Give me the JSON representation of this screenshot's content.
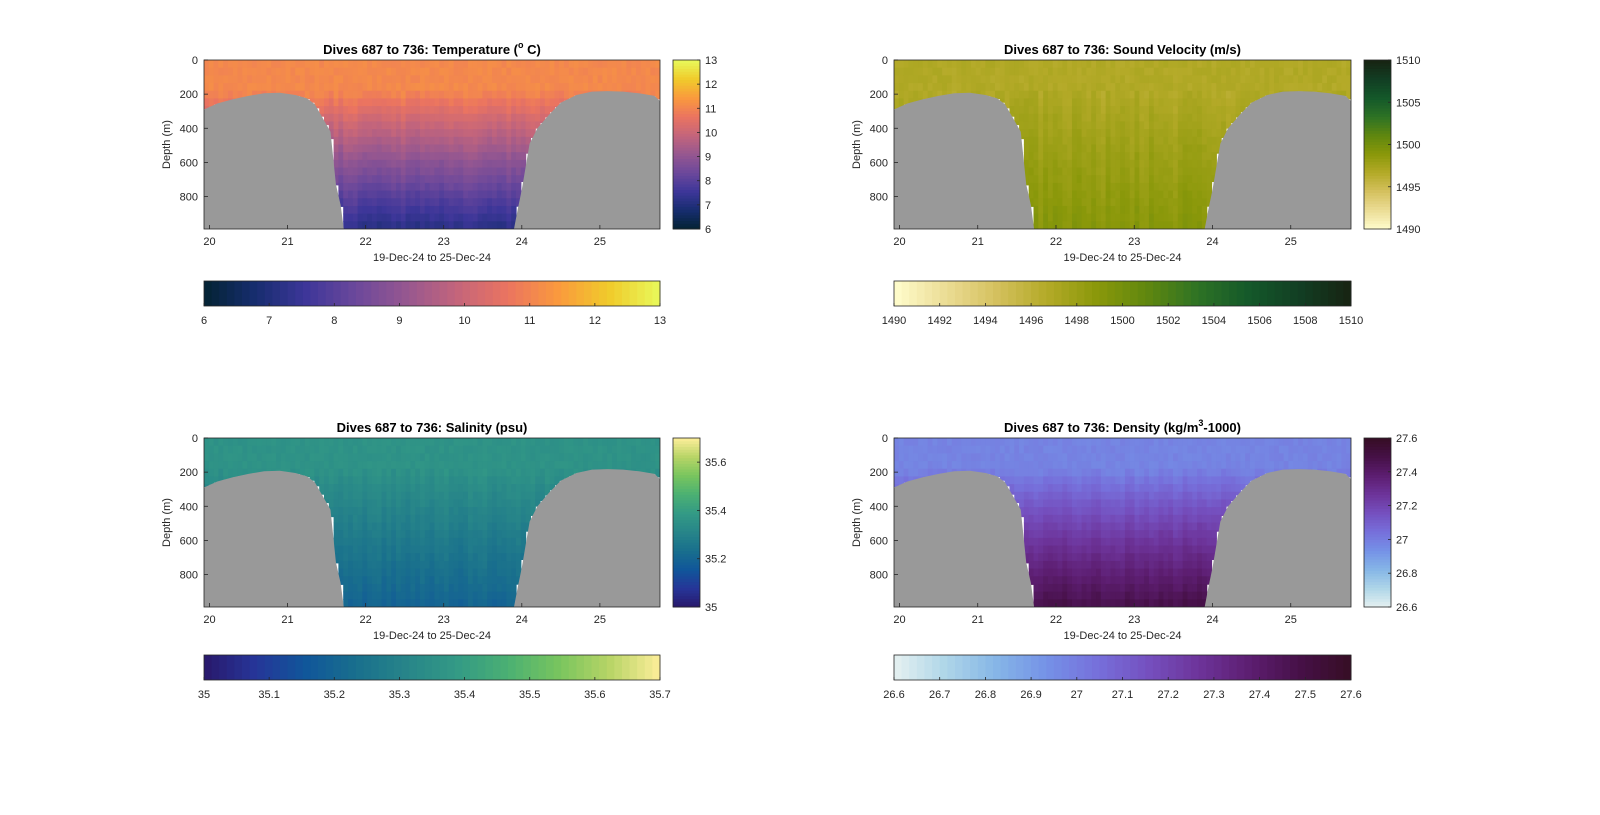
{
  "figure": {
    "panels": [
      {
        "id": "temperature",
        "title_prefix": "Dives 687 to 736: Temperature (",
        "title_sup": "o",
        "title_suffix": " C)",
        "ylabel": "Depth (m)",
        "xlabel": "19-Dec-24 to 25-Dec-24",
        "cbar_ticks": [
          "6",
          "7",
          "8",
          "9",
          "10",
          "11",
          "12",
          "13"
        ],
        "hbar_ticks": [
          "6",
          "7",
          "8",
          "9",
          "10",
          "11",
          "12",
          "13"
        ]
      },
      {
        "id": "sound-velocity",
        "title_prefix": "Dives 687 to 736: Sound Velocity (m/s)",
        "title_sup": "",
        "title_suffix": "",
        "ylabel": "Depth (m)",
        "xlabel": "19-Dec-24 to 25-Dec-24",
        "cbar_ticks": [
          "1490",
          "1495",
          "1500",
          "1505",
          "1510"
        ],
        "hbar_ticks": [
          "1490",
          "1492",
          "1494",
          "1496",
          "1498",
          "1500",
          "1502",
          "1504",
          "1506",
          "1508",
          "1510"
        ]
      },
      {
        "id": "salinity",
        "title_prefix": "Dives 687 to 736: Salinity (psu)",
        "title_sup": "",
        "title_suffix": "",
        "ylabel": "Depth (m)",
        "xlabel": "19-Dec-24 to 25-Dec-24",
        "cbar_ticks": [
          "35",
          "35.2",
          "35.4",
          "35.6"
        ],
        "hbar_ticks": [
          "35",
          "35.1",
          "35.2",
          "35.3",
          "35.4",
          "35.5",
          "35.6",
          "35.7"
        ]
      },
      {
        "id": "density",
        "title_prefix": "Dives 687 to 736: Density (kg/m",
        "title_sup": "3",
        "title_suffix": "-1000)",
        "ylabel": "Depth (m)",
        "xlabel": "19-Dec-24 to 25-Dec-24",
        "cbar_ticks": [
          "26.6",
          "26.8",
          "27",
          "27.2",
          "27.4",
          "27.6"
        ],
        "hbar_ticks": [
          "26.6",
          "26.7",
          "26.8",
          "26.9",
          "27",
          "27.1",
          "27.2",
          "27.3",
          "27.4",
          "27.5",
          "27.6"
        ]
      }
    ]
  },
  "chart_data": [
    {
      "type": "heatmap",
      "title": "Dives 687 to 736: Temperature (o C)",
      "xlabel": "19-Dec-24 to 25-Dec-24",
      "ylabel": "Depth (m)",
      "xlim": [
        19.93,
        25.77
      ],
      "ylim": [
        0,
        990
      ],
      "y_reversed": true,
      "xticks": [
        20,
        21,
        22,
        23,
        24,
        25
      ],
      "yticks": [
        0,
        200,
        400,
        600,
        800
      ],
      "clim": [
        6,
        13
      ],
      "colormap": "thermal",
      "colorbar_ticks": [
        6,
        7,
        8,
        9,
        10,
        11,
        12,
        13
      ],
      "horizontal_colorbar_ticks": [
        6,
        7,
        8,
        9,
        10,
        11,
        12,
        13
      ],
      "surface_value": 11.1,
      "deep_value": 7.2,
      "bathymetry": [
        {
          "x": 19.93,
          "depth": 290
        },
        {
          "x": 20.1,
          "depth": 255
        },
        {
          "x": 20.3,
          "depth": 230
        },
        {
          "x": 20.5,
          "depth": 210
        },
        {
          "x": 20.7,
          "depth": 195
        },
        {
          "x": 20.9,
          "depth": 192
        },
        {
          "x": 21.1,
          "depth": 205
        },
        {
          "x": 21.25,
          "depth": 225
        },
        {
          "x": 21.35,
          "depth": 260
        },
        {
          "x": 21.45,
          "depth": 340
        },
        {
          "x": 21.55,
          "depth": 420
        },
        {
          "x": 21.62,
          "depth": 730
        },
        {
          "x": 21.68,
          "depth": 850
        },
        {
          "x": 21.72,
          "depth": 990
        },
        {
          "x": 23.9,
          "depth": 990
        },
        {
          "x": 23.95,
          "depth": 870
        },
        {
          "x": 24.0,
          "depth": 760
        },
        {
          "x": 24.1,
          "depth": 490
        },
        {
          "x": 24.2,
          "depth": 400
        },
        {
          "x": 24.35,
          "depth": 320
        },
        {
          "x": 24.5,
          "depth": 250
        },
        {
          "x": 24.7,
          "depth": 205
        },
        {
          "x": 24.9,
          "depth": 185
        },
        {
          "x": 25.1,
          "depth": 182
        },
        {
          "x": 25.3,
          "depth": 185
        },
        {
          "x": 25.5,
          "depth": 195
        },
        {
          "x": 25.7,
          "depth": 210
        },
        {
          "x": 25.77,
          "depth": 240
        }
      ]
    },
    {
      "type": "heatmap",
      "title": "Dives 687 to 736: Sound Velocity (m/s)",
      "xlabel": "19-Dec-24 to 25-Dec-24",
      "ylabel": "Depth (m)",
      "xlim": [
        19.93,
        25.77
      ],
      "ylim": [
        0,
        990
      ],
      "y_reversed": true,
      "xticks": [
        20,
        21,
        22,
        23,
        24,
        25
      ],
      "yticks": [
        0,
        200,
        400,
        600,
        800
      ],
      "clim": [
        1490,
        1510
      ],
      "colormap": "speed",
      "colorbar_ticks": [
        1490,
        1495,
        1500,
        1505,
        1510
      ],
      "horizontal_colorbar_ticks": [
        1490,
        1492,
        1494,
        1496,
        1498,
        1500,
        1502,
        1504,
        1506,
        1508,
        1510
      ],
      "surface_value": 1496.8,
      "deep_value": 1499.0,
      "bathymetry_same_as": "temperature"
    },
    {
      "type": "heatmap",
      "title": "Dives 687 to 736: Salinity (psu)",
      "xlabel": "19-Dec-24 to 25-Dec-24",
      "ylabel": "Depth (m)",
      "xlim": [
        19.93,
        25.77
      ],
      "ylim": [
        0,
        990
      ],
      "y_reversed": true,
      "xticks": [
        20,
        21,
        22,
        23,
        24,
        25
      ],
      "yticks": [
        0,
        200,
        400,
        600,
        800
      ],
      "clim": [
        35,
        35.7
      ],
      "colormap": "haline",
      "colorbar_ticks": [
        35,
        35.2,
        35.4,
        35.6
      ],
      "horizontal_colorbar_ticks": [
        35,
        35.1,
        35.2,
        35.3,
        35.4,
        35.5,
        35.6,
        35.7
      ],
      "surface_value": 35.36,
      "deep_value": 35.2,
      "bathymetry_same_as": "temperature"
    },
    {
      "type": "heatmap",
      "title": "Dives 687 to 736: Density (kg/m3-1000)",
      "xlabel": "19-Dec-24 to 25-Dec-24",
      "ylabel": "Depth (m)",
      "xlim": [
        19.93,
        25.77
      ],
      "ylim": [
        0,
        990
      ],
      "y_reversed": true,
      "xticks": [
        20,
        21,
        22,
        23,
        24,
        25
      ],
      "yticks": [
        0,
        200,
        400,
        600,
        800
      ],
      "clim": [
        26.6,
        27.6
      ],
      "colormap": "dense",
      "colorbar_ticks": [
        26.6,
        26.8,
        27,
        27.2,
        27.4,
        27.6
      ],
      "horizontal_colorbar_ticks": [
        26.6,
        26.7,
        26.8,
        26.9,
        27,
        27.1,
        27.2,
        27.3,
        27.4,
        27.5,
        27.6
      ],
      "surface_value": 26.98,
      "deep_value": 27.48,
      "bathymetry_same_as": "temperature"
    }
  ]
}
